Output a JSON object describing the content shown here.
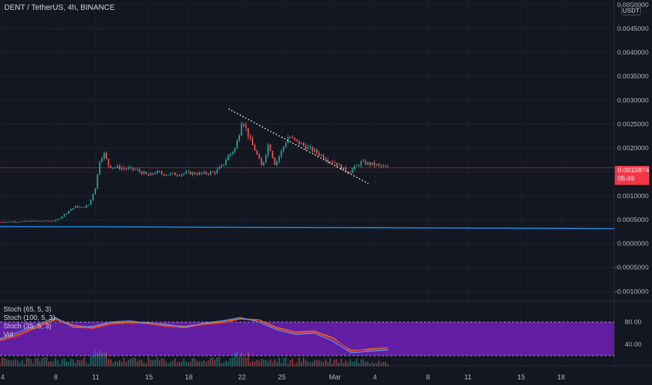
{
  "header": {
    "title": "DENT / TetherUS, 4h, BINANCE",
    "currency_badge": "USDT"
  },
  "price_tag": {
    "price": "0.0015874",
    "countdown": "05:49"
  },
  "oscillator_legend": [
    "Stoch (65, 5, 3)",
    "Stoch (100, 5, 3)",
    "Stoch (35, 5, 3)",
    "Vol"
  ],
  "colors": {
    "background": "#131722",
    "up": "#26a69a",
    "down": "#ef5350",
    "support_line": "#2196f3",
    "current_price_line": "#f23645",
    "osc_band": "#7e22ce"
  },
  "chart_data": [
    {
      "type": "candlestick",
      "title": "DENT / TetherUS, 4h, BINANCE",
      "ylim": [
        -0.0012,
        0.0051
      ],
      "y_ticks": [
        "0.0050000",
        "0.0045000",
        "0.0040000",
        "0.0035000",
        "0.0030000",
        "0.0025000",
        "0.0020000",
        "0.0015000",
        "0.0010000",
        "0.0005000",
        "0.0000000",
        "-0.0005000",
        "-0.0010000"
      ],
      "x_ticks": [
        "4",
        "8",
        "11",
        "15",
        "18",
        "22",
        "25",
        "Mar",
        "4",
        "8",
        "11",
        "15",
        "18"
      ],
      "x_day_range": [
        3.8,
        50.0
      ],
      "series": [
        {
          "name": "DENT/USDT",
          "x_days": [
            3.0,
            8.0,
            8.5,
            9.0,
            9.5,
            10.0,
            10.5,
            11.0,
            11.3,
            11.6,
            12.0,
            13.0,
            14.0,
            15.0,
            15.5,
            16.0,
            17.0,
            18.0,
            19.0,
            20.0,
            20.5,
            21.0,
            21.5,
            21.8,
            22.0,
            22.3,
            22.7,
            23.0,
            23.5,
            24.0,
            24.5,
            25.0,
            25.5,
            26.0,
            27.0,
            28.0,
            28.5,
            29.0,
            29.5,
            30.0,
            30.5,
            31.0,
            32.0,
            33.0
          ],
          "close": [
            0.00045,
            0.00048,
            0.00058,
            0.0007,
            0.00078,
            0.00075,
            0.00082,
            0.0012,
            0.00175,
            0.0019,
            0.00162,
            0.00158,
            0.00155,
            0.00142,
            0.0015,
            0.00146,
            0.00145,
            0.00148,
            0.00146,
            0.0015,
            0.00162,
            0.00185,
            0.002,
            0.00232,
            0.00262,
            0.0024,
            0.0021,
            0.00195,
            0.0016,
            0.0021,
            0.00165,
            0.00195,
            0.00225,
            0.00215,
            0.002,
            0.00185,
            0.00175,
            0.0017,
            0.00158,
            0.0015,
            0.0016,
            0.0017,
            0.00165,
            0.00158
          ]
        }
      ],
      "trendline": {
        "from": [
          21.0,
          0.00282
        ],
        "to": [
          31.5,
          0.00126
        ]
      },
      "support_level": 0.00036,
      "current_price": 0.0015874
    },
    {
      "type": "line",
      "title": "Stoch",
      "ylim": [
        20,
        95
      ],
      "y_ticks": [
        "80.00",
        "40.00"
      ],
      "band": [
        20,
        80
      ],
      "series": [
        {
          "name": "Stoch (65, 5, 3)",
          "values": [
            48,
            58,
            72,
            86,
            74,
            70,
            78,
            80,
            79,
            74,
            72,
            77,
            80,
            86,
            84,
            70,
            62,
            64,
            52,
            28,
            32,
            34
          ]
        },
        {
          "name": "Stoch (100, 5, 3)",
          "values": [
            46,
            55,
            70,
            84,
            72,
            68,
            76,
            78,
            77,
            72,
            70,
            75,
            78,
            85,
            83,
            68,
            60,
            62,
            50,
            30,
            30,
            31
          ]
        },
        {
          "name": "Stoch (35, 5, 3)",
          "values": [
            50,
            62,
            75,
            88,
            70,
            72,
            80,
            82,
            78,
            76,
            70,
            78,
            82,
            88,
            80,
            66,
            58,
            60,
            46,
            25,
            28,
            30
          ]
        }
      ]
    }
  ]
}
